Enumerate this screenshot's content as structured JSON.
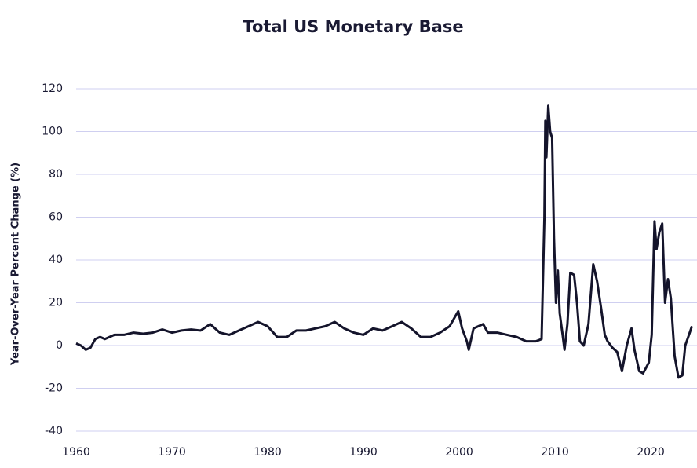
{
  "chart_data": {
    "type": "line",
    "title": "Total US Monetary Base",
    "y_label": "Year-Over-Year Percent Change (%)",
    "xlim": [
      1960,
      2024.3
    ],
    "xticks": [
      1960,
      1970,
      1980,
      1990,
      2000,
      2010,
      2020
    ],
    "ylim": [
      -40,
      120
    ],
    "yticks": [
      -40,
      -20,
      0,
      20,
      40,
      60,
      80,
      100,
      120
    ],
    "grid": true,
    "x": [
      1960,
      1960.5,
      1961,
      1961.5,
      1962,
      1962.5,
      1963,
      1964,
      1965,
      1966,
      1967,
      1968,
      1969,
      1970,
      1971,
      1972,
      1973,
      1974,
      1975,
      1976,
      1977,
      1978,
      1979,
      1980,
      1981,
      1982,
      1983,
      1984,
      1985,
      1986,
      1987,
      1988,
      1989,
      1990,
      1991,
      1992,
      1993,
      1994,
      1995,
      1996,
      1997,
      1998,
      1999,
      1999.9,
      2000.3,
      2000.8,
      2001,
      2001.5,
      2002,
      2002.5,
      2003,
      2004,
      2005,
      2006,
      2007,
      2008,
      2008.6,
      2008.9,
      2009.0,
      2009.1,
      2009.3,
      2009.5,
      2009.7,
      2009.9,
      2010.1,
      2010.3,
      2010.5,
      2010.8,
      2011.0,
      2011.3,
      2011.6,
      2012.0,
      2012.3,
      2012.6,
      2013.0,
      2013.5,
      2014.0,
      2014.4,
      2014.8,
      2015.2,
      2015.5,
      2016.0,
      2016.5,
      2017.0,
      2017.5,
      2018.0,
      2018.3,
      2018.8,
      2019.2,
      2019.8,
      2020.1,
      2020.4,
      2020.6,
      2020.9,
      2021.2,
      2021.5,
      2021.8,
      2022.1,
      2022.5,
      2022.9,
      2023.3,
      2023.6,
      2024.0,
      2024.3
    ],
    "series": [
      {
        "name": "Total US Monetary Base",
        "color": "#14142b",
        "values": [
          1,
          0,
          -2,
          -1,
          3,
          4,
          3,
          5,
          5,
          6,
          5.5,
          6,
          7.5,
          6,
          7,
          7.5,
          7,
          10,
          6,
          5,
          7,
          9,
          11,
          9,
          4,
          4,
          7,
          7,
          8,
          9,
          11,
          8,
          6,
          5,
          8,
          7,
          9,
          11,
          8,
          4,
          4,
          6,
          9,
          16,
          8,
          2,
          -2,
          8,
          9,
          10,
          6,
          6,
          5,
          4,
          2,
          2,
          3,
          60,
          105,
          88,
          112,
          100,
          97,
          50,
          20,
          35,
          15,
          5,
          -2,
          10,
          34,
          33,
          20,
          2,
          0,
          10,
          38,
          30,
          18,
          5,
          2,
          -1,
          -3,
          -12,
          0,
          8,
          -2,
          -12,
          -13,
          -8,
          5,
          58,
          45,
          53,
          57,
          20,
          31,
          22,
          -5,
          -15,
          -14,
          0,
          5,
          9
        ]
      }
    ]
  }
}
